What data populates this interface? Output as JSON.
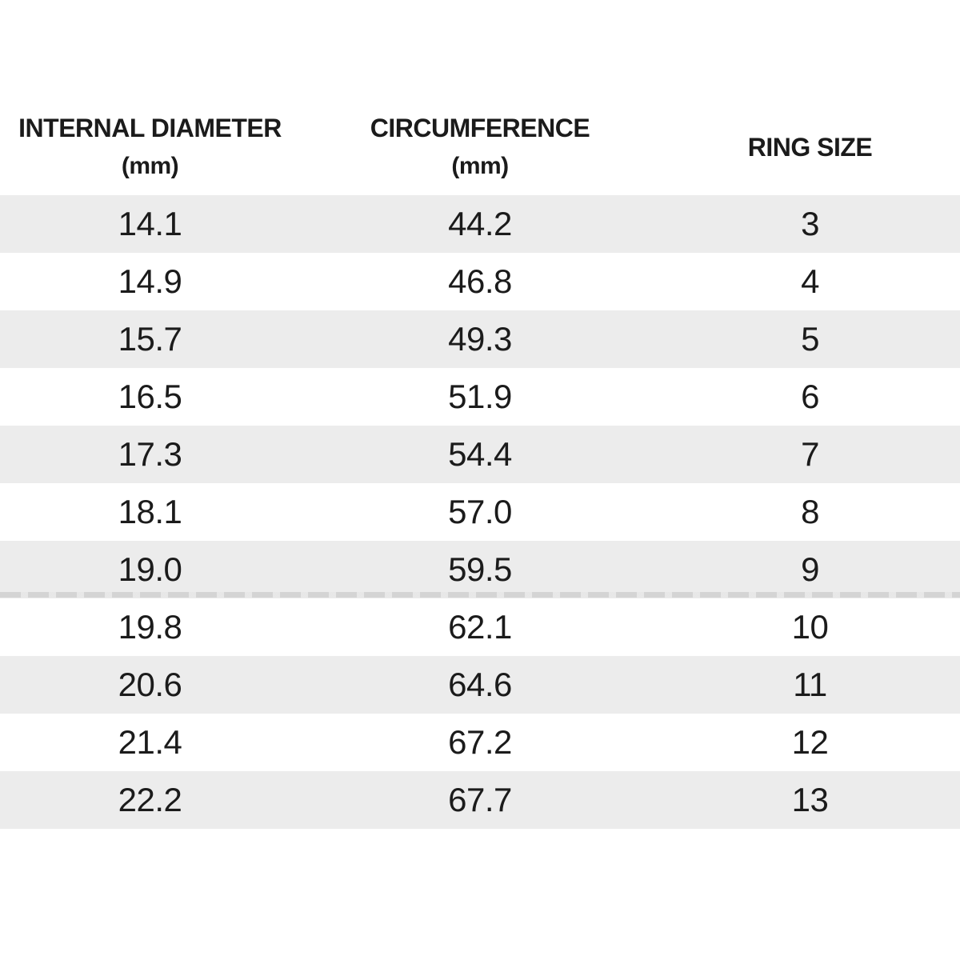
{
  "chart_data": {
    "type": "table",
    "title": "",
    "columns": [
      "INTERNAL DIAMETER (mm)",
      "CIRCUMFERENCE (mm)",
      "RING SIZE"
    ],
    "rows": [
      [
        14.1,
        44.2,
        3
      ],
      [
        14.9,
        46.8,
        4
      ],
      [
        15.7,
        49.3,
        5
      ],
      [
        16.5,
        51.9,
        6
      ],
      [
        17.3,
        54.4,
        7
      ],
      [
        18.1,
        57.0,
        8
      ],
      [
        19.0,
        59.5,
        9
      ],
      [
        19.8,
        62.1,
        10
      ],
      [
        20.6,
        64.6,
        11
      ],
      [
        21.4,
        67.2,
        12
      ],
      [
        22.2,
        67.7,
        13
      ]
    ],
    "layout": {
      "striped_rows": "odd rows light gray, even rows white",
      "alignment": "all columns centered",
      "grid": false
    }
  },
  "table": {
    "columns": [
      {
        "label": "INTERNAL DIAMETER",
        "sub": "(mm)"
      },
      {
        "label": "CIRCUMFERENCE",
        "sub": "(mm)"
      },
      {
        "label": "RING SIZE",
        "sub": ""
      }
    ],
    "rows": [
      {
        "diameter": "14.1",
        "circumference": "44.2",
        "size": "3"
      },
      {
        "diameter": "14.9",
        "circumference": "46.8",
        "size": "4"
      },
      {
        "diameter": "15.7",
        "circumference": "49.3",
        "size": "5"
      },
      {
        "diameter": "16.5",
        "circumference": "51.9",
        "size": "6"
      },
      {
        "diameter": "17.3",
        "circumference": "54.4",
        "size": "7"
      },
      {
        "diameter": "18.1",
        "circumference": "57.0",
        "size": "8"
      },
      {
        "diameter": "19.0",
        "circumference": "59.5",
        "size": "9"
      },
      {
        "diameter": "19.8",
        "circumference": "62.1",
        "size": "10"
      },
      {
        "diameter": "20.6",
        "circumference": "64.6",
        "size": "11"
      },
      {
        "diameter": "21.4",
        "circumference": "67.2",
        "size": "12"
      },
      {
        "diameter": "22.2",
        "circumference": "67.7",
        "size": "13"
      }
    ]
  },
  "colors": {
    "background": "#ffffff",
    "stripe": "#ececec",
    "text": "#1b1b1b"
  }
}
